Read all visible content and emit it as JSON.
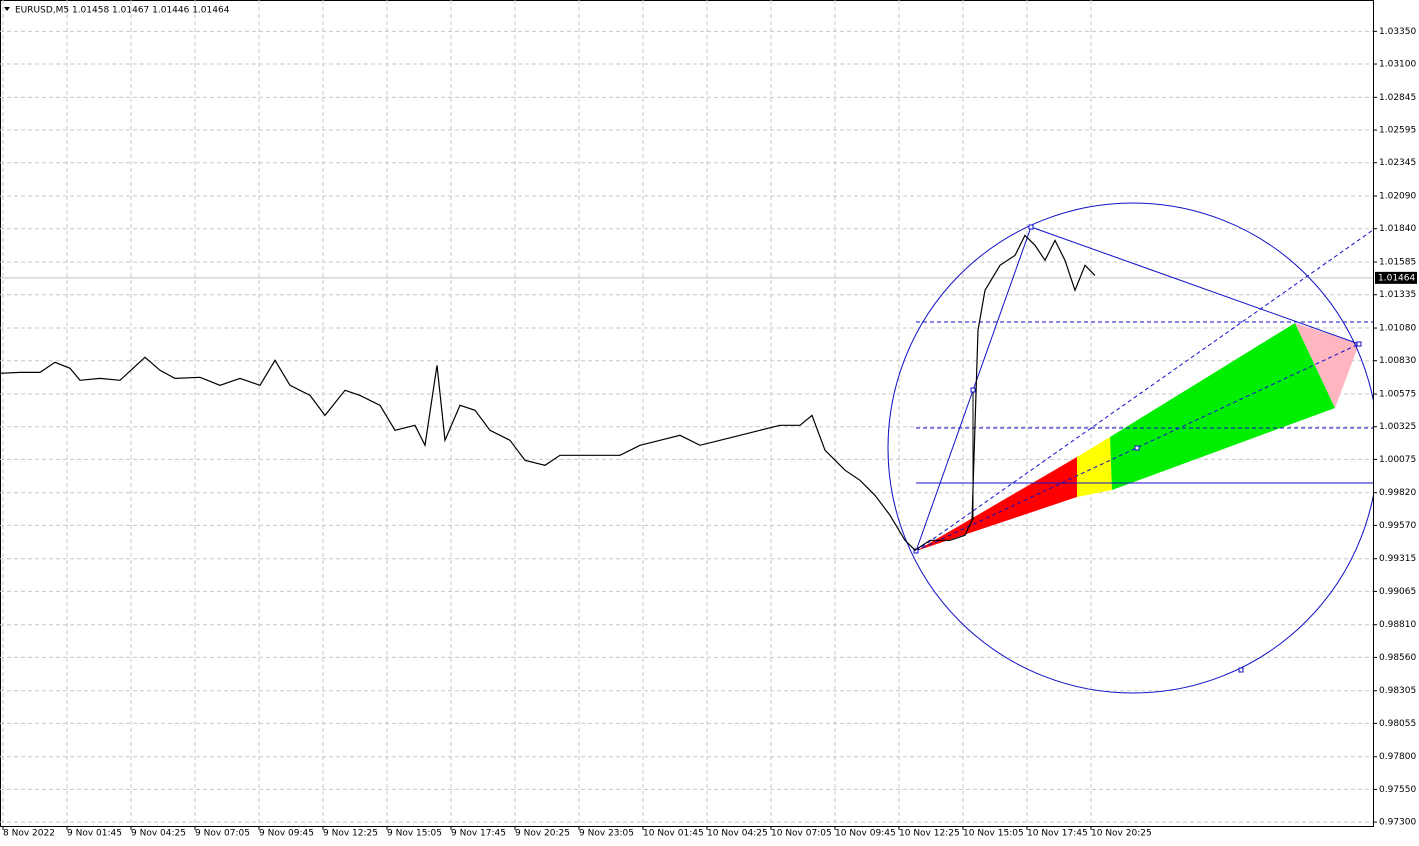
{
  "chart_data": {
    "type": "line",
    "title": "EURUSD,M5  1.01458 1.01467 1.01446 1.01464",
    "current_price_label": "1.01464",
    "current_price": 1.01464,
    "grid": true,
    "xlim": [
      0,
      686.5
    ],
    "ylim": [
      0.9727,
      1.0359
    ],
    "xticks": [
      {
        "value": 1.5,
        "label": "8 Nov 2022"
      },
      {
        "value": 33.5,
        "label": "9 Nov 01:45"
      },
      {
        "value": 65.5,
        "label": "9 Nov 04:25"
      },
      {
        "value": 97.5,
        "label": "9 Nov 07:05"
      },
      {
        "value": 129.5,
        "label": "9 Nov 09:45"
      },
      {
        "value": 161.5,
        "label": "9 Nov 12:25"
      },
      {
        "value": 193.5,
        "label": "9 Nov 15:05"
      },
      {
        "value": 225.5,
        "label": "9 Nov 17:45"
      },
      {
        "value": 257.5,
        "label": "9 Nov 20:25"
      },
      {
        "value": 289.5,
        "label": "9 Nov 23:05"
      },
      {
        "value": 321.5,
        "label": "10 Nov 01:45"
      },
      {
        "value": 353.5,
        "label": "10 Nov 04:25"
      },
      {
        "value": 385.5,
        "label": "10 Nov 07:05"
      },
      {
        "value": 417.5,
        "label": "10 Nov 09:45"
      },
      {
        "value": 449.5,
        "label": "10 Nov 12:25"
      },
      {
        "value": 481.5,
        "label": "10 Nov 15:05"
      },
      {
        "value": 513.5,
        "label": "10 Nov 17:45"
      },
      {
        "value": 545.5,
        "label": "10 Nov 20:25"
      }
    ],
    "yticks": [
      {
        "value": 1.0335,
        "label": "1.03350"
      },
      {
        "value": 1.031,
        "label": "1.03100"
      },
      {
        "value": 1.02845,
        "label": "1.02845"
      },
      {
        "value": 1.02595,
        "label": "1.02595"
      },
      {
        "value": 1.02345,
        "label": "1.02345"
      },
      {
        "value": 1.0209,
        "label": "1.02090"
      },
      {
        "value": 1.0184,
        "label": "1.01840"
      },
      {
        "value": 1.01585,
        "label": "1.01585"
      },
      {
        "value": 1.01335,
        "label": "1.01335"
      },
      {
        "value": 1.0108,
        "label": "1.01080"
      },
      {
        "value": 1.0083,
        "label": "1.00830"
      },
      {
        "value": 1.00575,
        "label": "1.00575"
      },
      {
        "value": 1.00325,
        "label": "1.00325"
      },
      {
        "value": 1.00075,
        "label": "1.00075"
      },
      {
        "value": 0.9982,
        "label": "0.99820"
      },
      {
        "value": 0.9957,
        "label": "0.99570"
      },
      {
        "value": 0.99315,
        "label": "0.99315"
      },
      {
        "value": 0.99065,
        "label": "0.99065"
      },
      {
        "value": 0.9881,
        "label": "0.98810"
      },
      {
        "value": 0.9856,
        "label": "0.98560"
      },
      {
        "value": 0.98305,
        "label": "0.98305"
      },
      {
        "value": 0.98055,
        "label": "0.98055"
      },
      {
        "value": 0.978,
        "label": "0.97800"
      },
      {
        "value": 0.9755,
        "label": "0.97550"
      },
      {
        "value": 0.973,
        "label": "0.97300"
      }
    ],
    "series": [
      {
        "name": "EURUSD,M5",
        "color": "#000000",
        "x": [
          0,
          10,
          20,
          27.5,
          35,
          40,
          50,
          60,
          72.5,
          80,
          87.5,
          100,
          110,
          120,
          130,
          137.5,
          145,
          155,
          162.5,
          172.5,
          180,
          190,
          197.5,
          207.5,
          212.5,
          218.5,
          222.5,
          230,
          237.5,
          245,
          255,
          262.5,
          272.5,
          280,
          290,
          300,
          310,
          320,
          330,
          340,
          350,
          360,
          370,
          380,
          390,
          400,
          406,
          412.5,
          422.5,
          430,
          437.5,
          445,
          452.5,
          457.5,
          465,
          475,
          482.5,
          486,
          489,
          492.5,
          500,
          507.5,
          512.5,
          517.5,
          522.5,
          527.5,
          532.5,
          537.5,
          542.5,
          547.5
        ],
        "values": [
          1.00734,
          1.00741,
          1.00741,
          1.00818,
          1.00772,
          1.0068,
          1.00695,
          1.0068,
          1.00856,
          1.00757,
          1.00695,
          1.00703,
          1.00642,
          1.00695,
          1.00642,
          1.00833,
          1.00642,
          1.00565,
          1.00412,
          1.00604,
          1.00565,
          1.00489,
          1.00298,
          1.00336,
          1.00183,
          1.00795,
          1.00221,
          1.00489,
          1.00451,
          1.00298,
          1.00221,
          1.00068,
          1.0003,
          1.00106,
          1.00106,
          1.00106,
          1.00106,
          1.00183,
          1.00221,
          1.00259,
          1.00183,
          1.00221,
          1.00259,
          1.00298,
          1.00336,
          1.00336,
          1.00412,
          1.00145,
          0.99992,
          0.99915,
          0.998,
          0.99647,
          0.99456,
          0.9938,
          0.99456,
          0.99456,
          0.99494,
          0.99609,
          1.01063,
          1.01369,
          1.0156,
          1.01636,
          1.01789,
          1.01713,
          1.01598,
          1.01751,
          1.01598,
          1.01369,
          1.0156,
          1.01483
        ]
      }
    ]
  }
}
